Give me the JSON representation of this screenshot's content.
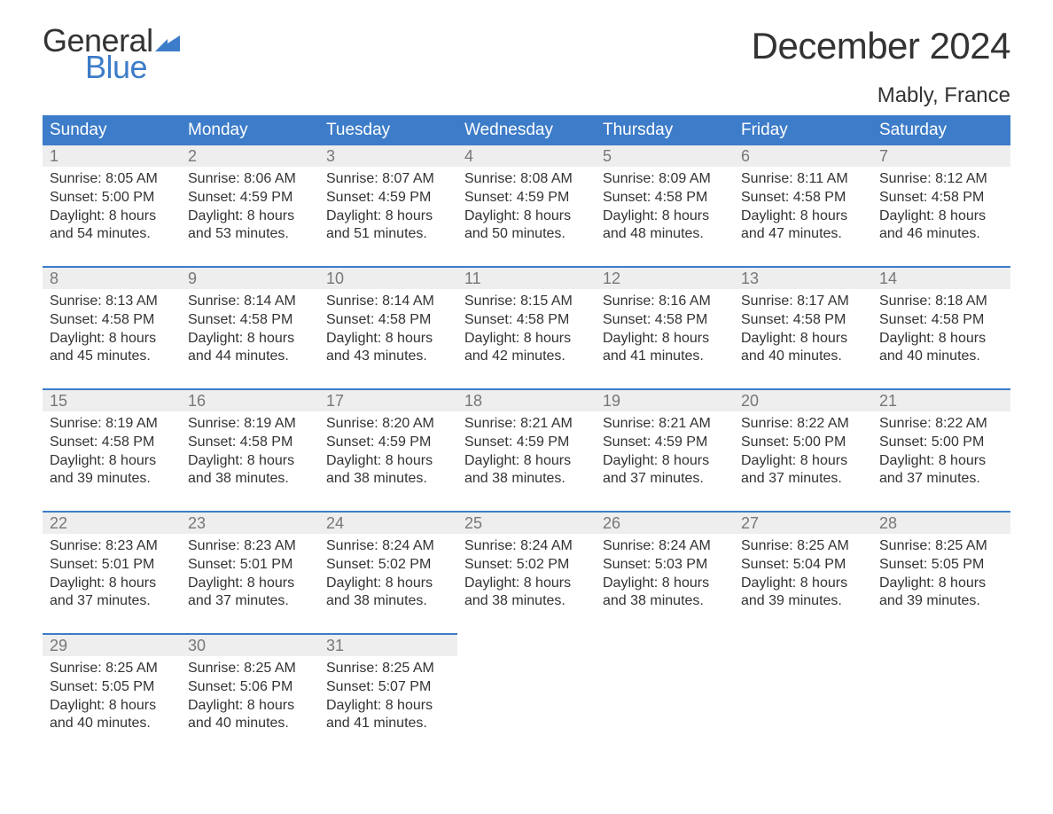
{
  "logo": {
    "text_general": "General",
    "text_blue": "Blue",
    "mark_color": "#3d7cc9"
  },
  "title": "December 2024",
  "location": "Mably, France",
  "colors": {
    "header_bg": "#3d7cc9",
    "header_text": "#ffffff",
    "daynum_bg": "#eeeeee",
    "daynum_text": "#777777",
    "body_text": "#333333",
    "rule": "#3d7cc9",
    "page_bg": "#ffffff"
  },
  "typography": {
    "title_fontsize": 42,
    "location_fontsize": 24,
    "weekday_fontsize": 19,
    "daynum_fontsize": 18,
    "cell_fontsize": 16,
    "logo_fontsize": 36
  },
  "weekdays": [
    "Sunday",
    "Monday",
    "Tuesday",
    "Wednesday",
    "Thursday",
    "Friday",
    "Saturday"
  ],
  "weeks": [
    [
      {
        "num": "1",
        "sunrise": "8:05 AM",
        "sunset": "5:00 PM",
        "daylight1": "Daylight: 8 hours",
        "daylight2": "and 54 minutes."
      },
      {
        "num": "2",
        "sunrise": "8:06 AM",
        "sunset": "4:59 PM",
        "daylight1": "Daylight: 8 hours",
        "daylight2": "and 53 minutes."
      },
      {
        "num": "3",
        "sunrise": "8:07 AM",
        "sunset": "4:59 PM",
        "daylight1": "Daylight: 8 hours",
        "daylight2": "and 51 minutes."
      },
      {
        "num": "4",
        "sunrise": "8:08 AM",
        "sunset": "4:59 PM",
        "daylight1": "Daylight: 8 hours",
        "daylight2": "and 50 minutes."
      },
      {
        "num": "5",
        "sunrise": "8:09 AM",
        "sunset": "4:58 PM",
        "daylight1": "Daylight: 8 hours",
        "daylight2": "and 48 minutes."
      },
      {
        "num": "6",
        "sunrise": "8:11 AM",
        "sunset": "4:58 PM",
        "daylight1": "Daylight: 8 hours",
        "daylight2": "and 47 minutes."
      },
      {
        "num": "7",
        "sunrise": "8:12 AM",
        "sunset": "4:58 PM",
        "daylight1": "Daylight: 8 hours",
        "daylight2": "and 46 minutes."
      }
    ],
    [
      {
        "num": "8",
        "sunrise": "8:13 AM",
        "sunset": "4:58 PM",
        "daylight1": "Daylight: 8 hours",
        "daylight2": "and 45 minutes."
      },
      {
        "num": "9",
        "sunrise": "8:14 AM",
        "sunset": "4:58 PM",
        "daylight1": "Daylight: 8 hours",
        "daylight2": "and 44 minutes."
      },
      {
        "num": "10",
        "sunrise": "8:14 AM",
        "sunset": "4:58 PM",
        "daylight1": "Daylight: 8 hours",
        "daylight2": "and 43 minutes."
      },
      {
        "num": "11",
        "sunrise": "8:15 AM",
        "sunset": "4:58 PM",
        "daylight1": "Daylight: 8 hours",
        "daylight2": "and 42 minutes."
      },
      {
        "num": "12",
        "sunrise": "8:16 AM",
        "sunset": "4:58 PM",
        "daylight1": "Daylight: 8 hours",
        "daylight2": "and 41 minutes."
      },
      {
        "num": "13",
        "sunrise": "8:17 AM",
        "sunset": "4:58 PM",
        "daylight1": "Daylight: 8 hours",
        "daylight2": "and 40 minutes."
      },
      {
        "num": "14",
        "sunrise": "8:18 AM",
        "sunset": "4:58 PM",
        "daylight1": "Daylight: 8 hours",
        "daylight2": "and 40 minutes."
      }
    ],
    [
      {
        "num": "15",
        "sunrise": "8:19 AM",
        "sunset": "4:58 PM",
        "daylight1": "Daylight: 8 hours",
        "daylight2": "and 39 minutes."
      },
      {
        "num": "16",
        "sunrise": "8:19 AM",
        "sunset": "4:58 PM",
        "daylight1": "Daylight: 8 hours",
        "daylight2": "and 38 minutes."
      },
      {
        "num": "17",
        "sunrise": "8:20 AM",
        "sunset": "4:59 PM",
        "daylight1": "Daylight: 8 hours",
        "daylight2": "and 38 minutes."
      },
      {
        "num": "18",
        "sunrise": "8:21 AM",
        "sunset": "4:59 PM",
        "daylight1": "Daylight: 8 hours",
        "daylight2": "and 38 minutes."
      },
      {
        "num": "19",
        "sunrise": "8:21 AM",
        "sunset": "4:59 PM",
        "daylight1": "Daylight: 8 hours",
        "daylight2": "and 37 minutes."
      },
      {
        "num": "20",
        "sunrise": "8:22 AM",
        "sunset": "5:00 PM",
        "daylight1": "Daylight: 8 hours",
        "daylight2": "and 37 minutes."
      },
      {
        "num": "21",
        "sunrise": "8:22 AM",
        "sunset": "5:00 PM",
        "daylight1": "Daylight: 8 hours",
        "daylight2": "and 37 minutes."
      }
    ],
    [
      {
        "num": "22",
        "sunrise": "8:23 AM",
        "sunset": "5:01 PM",
        "daylight1": "Daylight: 8 hours",
        "daylight2": "and 37 minutes."
      },
      {
        "num": "23",
        "sunrise": "8:23 AM",
        "sunset": "5:01 PM",
        "daylight1": "Daylight: 8 hours",
        "daylight2": "and 37 minutes."
      },
      {
        "num": "24",
        "sunrise": "8:24 AM",
        "sunset": "5:02 PM",
        "daylight1": "Daylight: 8 hours",
        "daylight2": "and 38 minutes."
      },
      {
        "num": "25",
        "sunrise": "8:24 AM",
        "sunset": "5:02 PM",
        "daylight1": "Daylight: 8 hours",
        "daylight2": "and 38 minutes."
      },
      {
        "num": "26",
        "sunrise": "8:24 AM",
        "sunset": "5:03 PM",
        "daylight1": "Daylight: 8 hours",
        "daylight2": "and 38 minutes."
      },
      {
        "num": "27",
        "sunrise": "8:25 AM",
        "sunset": "5:04 PM",
        "daylight1": "Daylight: 8 hours",
        "daylight2": "and 39 minutes."
      },
      {
        "num": "28",
        "sunrise": "8:25 AM",
        "sunset": "5:05 PM",
        "daylight1": "Daylight: 8 hours",
        "daylight2": "and 39 minutes."
      }
    ],
    [
      {
        "num": "29",
        "sunrise": "8:25 AM",
        "sunset": "5:05 PM",
        "daylight1": "Daylight: 8 hours",
        "daylight2": "and 40 minutes."
      },
      {
        "num": "30",
        "sunrise": "8:25 AM",
        "sunset": "5:06 PM",
        "daylight1": "Daylight: 8 hours",
        "daylight2": "and 40 minutes."
      },
      {
        "num": "31",
        "sunrise": "8:25 AM",
        "sunset": "5:07 PM",
        "daylight1": "Daylight: 8 hours",
        "daylight2": "and 41 minutes."
      },
      null,
      null,
      null,
      null
    ]
  ],
  "labels": {
    "sunrise_prefix": "Sunrise: ",
    "sunset_prefix": "Sunset: "
  }
}
